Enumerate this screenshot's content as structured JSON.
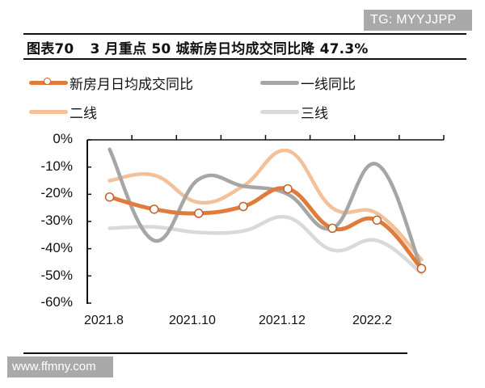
{
  "watermarks": {
    "top": "TG: MYYJJPP",
    "bottom": "www.ffmny.com"
  },
  "figure": {
    "number": "图表70",
    "title": "3 月重点 50 城新房日均成交同比降 47.3%"
  },
  "legend": [
    {
      "label": "新房月日均成交同比",
      "color": "#E07B3C",
      "marker": "hollow-circle"
    },
    {
      "label": "一线同比",
      "color": "#A6A6A6",
      "marker": "none"
    },
    {
      "label": "二线",
      "color": "#F2C19A",
      "marker": "none"
    },
    {
      "label": "三线",
      "color": "#D9D9D9",
      "marker": "none"
    }
  ],
  "axes": {
    "y_ticks": [
      "0%",
      "-10%",
      "-20%",
      "-30%",
      "-40%",
      "-50%",
      "-60%"
    ],
    "x_ticks": [
      "2021.8",
      "2021.10",
      "2021.12",
      "2022.2"
    ]
  },
  "colors": {
    "new_home": "#E07B3C",
    "tier1": "#A6A6A6",
    "tier2": "#F2C19A",
    "tier3": "#D9D9D9",
    "marker_stroke": "#C0602D",
    "axis": "#111111"
  },
  "chart_data": {
    "type": "line",
    "title": "3 月重点 50 城新房日均成交同比降 47.3%",
    "xlabel": "",
    "ylabel": "",
    "ylim": [
      -60,
      0
    ],
    "y_unit": "%",
    "x_axis_position": "top (at 0%)",
    "grid": false,
    "legend_position": "top",
    "categories": [
      "2021.8",
      "2021.9",
      "2021.10",
      "2021.11",
      "2021.12",
      "2022.1",
      "2022.2",
      "2022.3"
    ],
    "x_tick_labels": [
      "2021.8",
      "2021.10",
      "2021.12",
      "2022.2"
    ],
    "series": [
      {
        "name": "新房月日均成交同比",
        "values": [
          -21,
          -25.5,
          -27,
          -24.5,
          -18,
          -32.5,
          -29.5,
          -47.3
        ],
        "smooth": true,
        "markers": true
      },
      {
        "name": "一线同比",
        "values": [
          -3.5,
          -37,
          -14.5,
          -17,
          -20,
          -32.5,
          -9,
          -47.5
        ],
        "smooth": true,
        "markers": false
      },
      {
        "name": "二线",
        "values": [
          -15,
          -13,
          -23,
          -17,
          -4,
          -25,
          -27,
          -44
        ],
        "smooth": true,
        "markers": false
      },
      {
        "name": "三线",
        "values": [
          -32.5,
          -32,
          -34,
          -33.5,
          -28.5,
          -40.5,
          -37,
          -49
        ],
        "smooth": true,
        "markers": false
      }
    ]
  }
}
